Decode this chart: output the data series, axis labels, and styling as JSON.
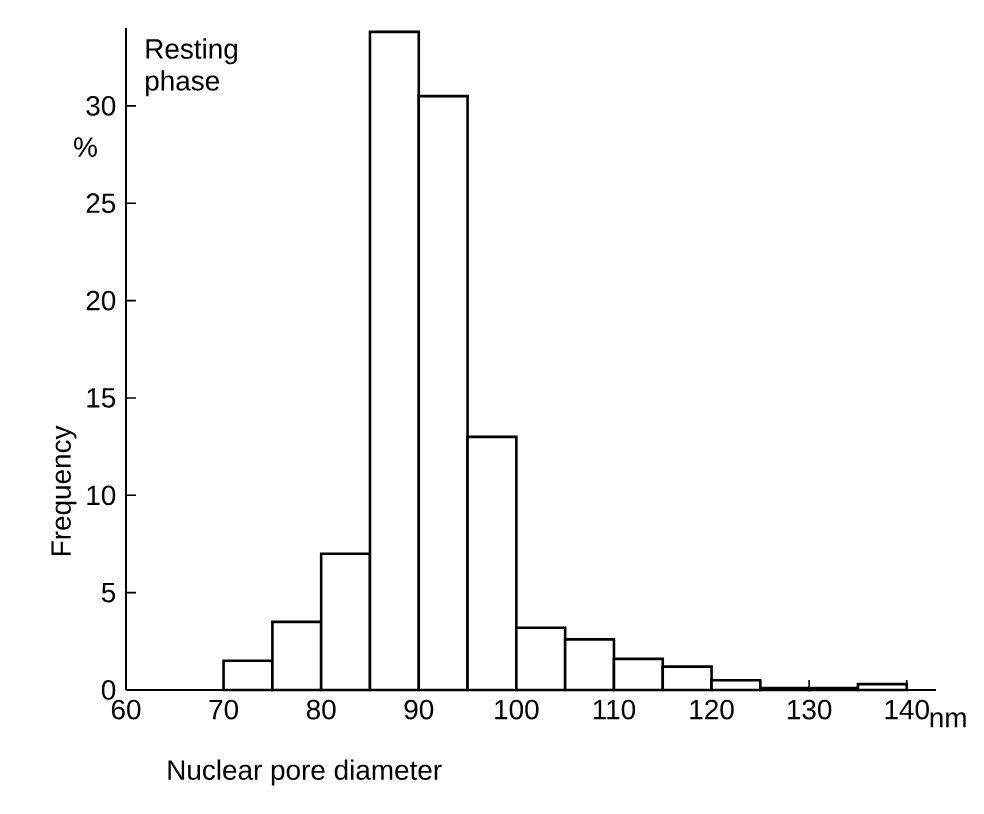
{
  "chart_data": {
    "type": "histogram",
    "title": "Resting phase",
    "xlabel": "Nuclear pore diameter",
    "ylabel": "Frequency",
    "annotations": [
      "%",
      "nm"
    ],
    "bins": [
      70,
      75,
      80,
      85,
      90,
      95,
      100,
      105,
      110,
      115,
      120,
      125,
      130,
      135,
      140
    ],
    "values": [
      1.5,
      3.5,
      7.0,
      33.8,
      30.5,
      13.0,
      3.2,
      2.6,
      1.6,
      1.2,
      0.5,
      0.1,
      0.1,
      0.3
    ],
    "color": "#ffffff",
    "xlim": [
      60,
      143
    ],
    "xticks": [
      60,
      70,
      80,
      90,
      100,
      110,
      120,
      130,
      140
    ],
    "ylim": [
      0,
      34
    ],
    "yticks": [
      0,
      5,
      10,
      15,
      20,
      25,
      30
    ],
    "grid": false
  }
}
